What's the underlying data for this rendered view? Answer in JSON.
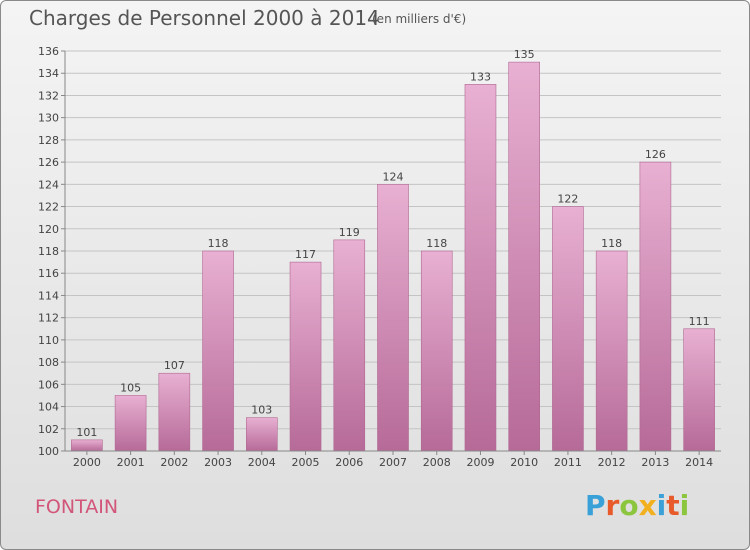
{
  "header": {
    "title": "Charges de Personnel 2000 à 2014",
    "subtitle": "(en milliers d'€)"
  },
  "commune": "FONTAIN",
  "brand": {
    "text": "Proxiti",
    "letter_colors": [
      "#3aa0d8",
      "#e85a2a",
      "#8cc63f",
      "#f2b01e",
      "#3aa0d8",
      "#e85a2a",
      "#8cc63f"
    ]
  },
  "colors": {
    "bar": "#cf84b0",
    "bar_light": "#e6acd0",
    "bar_dark": "#b86898",
    "title": "#555555",
    "commune": "#d2557a"
  },
  "chart_data": {
    "type": "bar",
    "title": "Charges de Personnel 2000 à 2014",
    "subtitle": "(en milliers d'€)",
    "xlabel": "",
    "ylabel": "",
    "categories": [
      "2000",
      "2001",
      "2002",
      "2003",
      "2004",
      "2005",
      "2006",
      "2007",
      "2008",
      "2009",
      "2010",
      "2011",
      "2012",
      "2013",
      "2014"
    ],
    "values": [
      101,
      105,
      107,
      118,
      103,
      117,
      119,
      124,
      118,
      133,
      135,
      122,
      118,
      126,
      111
    ],
    "ylim": [
      100,
      136
    ],
    "yticks": [
      100,
      102,
      104,
      106,
      108,
      110,
      112,
      114,
      116,
      118,
      120,
      122,
      124,
      126,
      128,
      130,
      132,
      134,
      136
    ],
    "grid": true,
    "legend": "none"
  }
}
